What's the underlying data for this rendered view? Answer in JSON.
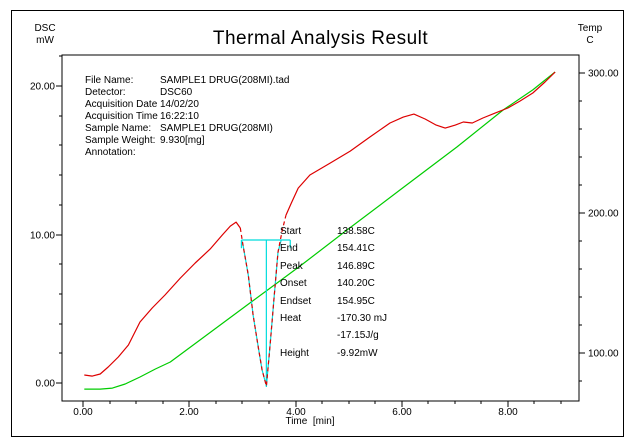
{
  "title": "Thermal Analysis Result",
  "axes": {
    "left": {
      "line1": "DSC",
      "line2": "mW"
    },
    "right": {
      "line1": "Temp",
      "line2": "C"
    },
    "bottom": {
      "title": "Time  [min]"
    }
  },
  "info": {
    "rows": [
      {
        "label": "File Name:",
        "value": "SAMPLE1 DRUG(208MI).tad"
      },
      {
        "label": "Detector:",
        "value": "DSC60"
      },
      {
        "label": "Acquisition Date",
        "value": "14/02/20"
      },
      {
        "label": "Acquisition Time",
        "value": "16:22:10"
      },
      {
        "label": "Sample Name:",
        "value": "SAMPLE1 DRUG(208MI)"
      },
      {
        "label": "Sample Weight:",
        "value": "9.930[mg]"
      },
      {
        "label": "Annotation:",
        "value": ""
      }
    ]
  },
  "results": {
    "rows": [
      {
        "label": "Start",
        "value": "138.58C"
      },
      {
        "label": "End",
        "value": "154.41C"
      },
      {
        "label": "Peak",
        "value": "146.89C"
      },
      {
        "label": "Onset",
        "value": "140.20C"
      },
      {
        "label": "Endset",
        "value": "154.95C"
      },
      {
        "label": "Heat",
        "value": "-170.30 mJ"
      },
      {
        "label": "",
        "value": "-17.15J/g"
      },
      {
        "label": "Height",
        "value": "-9.92mW"
      }
    ]
  },
  "chart_data": {
    "type": "line",
    "title": "Thermal Analysis Result",
    "xlabel": "Time [min]",
    "xlim": [
      -0.4,
      9.34
    ],
    "x_major_ticks": [
      0,
      2,
      4,
      6,
      8
    ],
    "x_minor_step": 0.5,
    "y_left": {
      "label": "DSC mW",
      "lim": [
        -1.21,
        22.09
      ],
      "major_ticks": [
        0,
        10,
        20
      ],
      "minor_step": 2
    },
    "y_right": {
      "label": "Temp C",
      "lim": [
        65.8,
        312.5
      ],
      "major_ticks": [
        100,
        200,
        300
      ],
      "minor_step": 20
    },
    "grid": false,
    "series": [
      {
        "name": "DSC",
        "axis": "left",
        "color": "#dd0000",
        "dashed_range": [
          2.96,
          3.82
        ],
        "points": [
          [
            0.02,
            0.54
          ],
          [
            0.17,
            0.47
          ],
          [
            0.32,
            0.61
          ],
          [
            0.47,
            1.08
          ],
          [
            0.66,
            1.75
          ],
          [
            0.85,
            2.56
          ],
          [
            1.07,
            4.11
          ],
          [
            1.3,
            5.05
          ],
          [
            1.54,
            5.93
          ],
          [
            1.83,
            7.07
          ],
          [
            2.11,
            8.08
          ],
          [
            2.39,
            9.02
          ],
          [
            2.62,
            9.97
          ],
          [
            2.77,
            10.57
          ],
          [
            2.88,
            10.84
          ],
          [
            2.96,
            10.44
          ],
          [
            3.01,
            9.29
          ],
          [
            3.11,
            7.27
          ],
          [
            3.2,
            4.58
          ],
          [
            3.3,
            2.36
          ],
          [
            3.37,
            0.88
          ],
          [
            3.45,
            -0.2
          ],
          [
            3.52,
            2.56
          ],
          [
            3.6,
            5.93
          ],
          [
            3.67,
            8.82
          ],
          [
            3.75,
            10.3
          ],
          [
            3.82,
            11.31
          ],
          [
            3.92,
            12.12
          ],
          [
            4.05,
            13.13
          ],
          [
            4.27,
            14.01
          ],
          [
            4.65,
            14.81
          ],
          [
            5.03,
            15.62
          ],
          [
            5.4,
            16.57
          ],
          [
            5.78,
            17.51
          ],
          [
            6.03,
            17.91
          ],
          [
            6.23,
            18.11
          ],
          [
            6.44,
            17.78
          ],
          [
            6.65,
            17.37
          ],
          [
            6.82,
            17.17
          ],
          [
            7.01,
            17.37
          ],
          [
            7.16,
            17.58
          ],
          [
            7.33,
            17.51
          ],
          [
            7.53,
            17.85
          ],
          [
            7.76,
            18.18
          ],
          [
            8.0,
            18.52
          ],
          [
            8.23,
            18.99
          ],
          [
            8.47,
            19.53
          ],
          [
            8.7,
            20.27
          ],
          [
            8.89,
            20.94
          ]
        ]
      },
      {
        "name": "Temperature",
        "axis": "right",
        "color": "#00cc00",
        "points": [
          [
            0.02,
            74.3
          ],
          [
            0.32,
            74.3
          ],
          [
            0.55,
            75.0
          ],
          [
            0.79,
            77.9
          ],
          [
            1.07,
            82.9
          ],
          [
            1.36,
            88.6
          ],
          [
            1.64,
            93.6
          ],
          [
            2.2,
            109.3
          ],
          [
            3.14,
            135.7
          ],
          [
            4.09,
            162.1
          ],
          [
            4.97,
            187.7
          ],
          [
            5.97,
            216.3
          ],
          [
            7.04,
            246.9
          ],
          [
            7.91,
            273.3
          ],
          [
            8.47,
            287.6
          ],
          [
            8.89,
            300.4
          ]
        ]
      }
    ],
    "peak_annotation": {
      "color": "#00dcdc",
      "baseline": {
        "x1": 2.98,
        "x2": 3.9,
        "y": 9.63,
        "end_tick_drop": 0.55
      },
      "drop_line": {
        "x": 3.45,
        "y_top": 9.63,
        "y_bottom": -0.27
      },
      "left_flank": [
        [
          2.98,
          9.63
        ],
        [
          3.01,
          9.29
        ],
        [
          3.11,
          7.27
        ],
        [
          3.2,
          4.58
        ],
        [
          3.3,
          2.36
        ],
        [
          3.37,
          0.88
        ],
        [
          3.45,
          -0.2
        ]
      ],
      "right_flank": [
        [
          3.45,
          -0.2
        ],
        [
          3.52,
          2.56
        ],
        [
          3.6,
          5.93
        ],
        [
          3.67,
          8.82
        ],
        [
          3.73,
          9.63
        ]
      ],
      "values": {
        "start_c": 138.58,
        "end_c": 154.41,
        "peak_c": 146.89,
        "onset_c": 140.2,
        "endset_c": 154.95,
        "heat_mj": -170.3,
        "heat_j_per_g": -17.15,
        "height_mw": -9.92
      }
    }
  }
}
